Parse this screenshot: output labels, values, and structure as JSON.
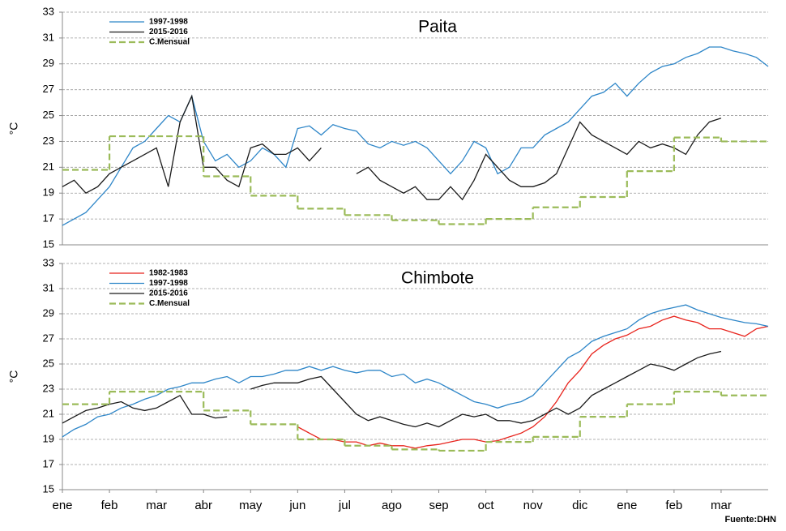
{
  "source": "Fuente:DHN",
  "chart_data": [
    {
      "type": "line",
      "title": "Paita",
      "ylabel": "°C",
      "x": [
        0,
        0.25,
        0.5,
        0.75,
        1,
        1.25,
        1.5,
        1.75,
        2,
        2.25,
        2.5,
        2.75,
        3,
        3.25,
        3.5,
        3.75,
        4,
        4.25,
        4.5,
        4.75,
        5,
        5.25,
        5.5,
        5.75,
        6,
        6.25,
        6.5,
        6.75,
        7,
        7.25,
        7.5,
        7.75,
        8,
        8.25,
        8.5,
        8.75,
        9,
        9.25,
        9.5,
        9.75,
        10,
        10.25,
        10.5,
        10.75,
        11,
        11.25,
        11.5,
        11.75,
        12,
        12.25,
        12.5,
        12.75,
        13,
        13.25,
        13.5,
        13.75,
        14,
        14.25,
        14.5,
        14.75,
        15
      ],
      "xlim": [
        0,
        15
      ],
      "ylim": [
        15,
        33
      ],
      "yticks": [
        15,
        17,
        19,
        21,
        23,
        25,
        27,
        29,
        31,
        33
      ],
      "grid": true,
      "legend": "upper left",
      "series": [
        {
          "name": "1997-1998",
          "color": "#2e86c8",
          "values": [
            16.5,
            17,
            17.5,
            18.5,
            19.5,
            21,
            22.5,
            23,
            24,
            25,
            24.5,
            26.5,
            23,
            21.5,
            22,
            21,
            21.5,
            22.5,
            22,
            21,
            24,
            24.2,
            23.5,
            24.3,
            24,
            23.8,
            22.8,
            22.5,
            23,
            22.7,
            23,
            22.5,
            21.5,
            20.5,
            21.5,
            23,
            22.5,
            20.5,
            21,
            22.5,
            22.5,
            23.5,
            24,
            24.5,
            25.5,
            26.5,
            26.8,
            27.5,
            26.5,
            27.5,
            28.3,
            28.8,
            29,
            29.5,
            29.8,
            30.3,
            30.3,
            30,
            29.8,
            29.5,
            28.8
          ]
        },
        {
          "name": "2015-2016",
          "color": "#1a1a1a",
          "values": [
            19.5,
            20,
            19,
            19.5,
            20.5,
            21,
            21.5,
            22,
            22.5,
            19.5,
            24.5,
            26.5,
            21,
            21,
            20,
            19.5,
            22.5,
            22.8,
            22,
            22,
            22.5,
            21.5,
            22.5,
            null,
            null,
            20.5,
            21,
            20,
            19.5,
            19,
            19.5,
            18.5,
            18.5,
            19.5,
            18.5,
            20,
            22,
            21,
            20,
            19.5,
            19.5,
            19.8,
            20.5,
            22.5,
            24.5,
            23.5,
            23,
            22.5,
            22,
            23,
            22.5,
            22.8,
            22.5,
            22,
            23.5,
            24.5,
            24.8,
            null,
            null,
            null,
            null
          ]
        },
        {
          "name": "C.Mensual",
          "color": "#9bbb59",
          "dash": true,
          "step": true,
          "x": [
            0,
            1,
            2,
            3,
            4,
            5,
            6,
            7,
            8,
            9,
            10,
            11,
            12,
            13,
            14
          ],
          "values": [
            20.8,
            23.4,
            23.4,
            20.3,
            18.8,
            17.8,
            17.3,
            16.9,
            16.6,
            17.0,
            17.9,
            18.7,
            20.7,
            23.3,
            23.0
          ]
        }
      ]
    },
    {
      "type": "line",
      "title": "Chimbote",
      "ylabel": "°C",
      "x": [
        0,
        0.25,
        0.5,
        0.75,
        1,
        1.25,
        1.5,
        1.75,
        2,
        2.25,
        2.5,
        2.75,
        3,
        3.25,
        3.5,
        3.75,
        4,
        4.25,
        4.5,
        4.75,
        5,
        5.25,
        5.5,
        5.75,
        6,
        6.25,
        6.5,
        6.75,
        7,
        7.25,
        7.5,
        7.75,
        8,
        8.25,
        8.5,
        8.75,
        9,
        9.25,
        9.5,
        9.75,
        10,
        10.25,
        10.5,
        10.75,
        11,
        11.25,
        11.5,
        11.75,
        12,
        12.25,
        12.5,
        12.75,
        13,
        13.25,
        13.5,
        13.75,
        14,
        14.25,
        14.5,
        14.75,
        15
      ],
      "xlim": [
        0,
        15
      ],
      "ylim": [
        15,
        33
      ],
      "yticks": [
        15,
        17,
        19,
        21,
        23,
        25,
        27,
        29,
        31,
        33
      ],
      "grid": true,
      "legend": "upper left",
      "xticks": [
        {
          "value": 0,
          "label": "ene"
        },
        {
          "value": 1,
          "label": "feb"
        },
        {
          "value": 2,
          "label": "mar"
        },
        {
          "value": 3,
          "label": "abr"
        },
        {
          "value": 4,
          "label": "may"
        },
        {
          "value": 5,
          "label": "jun"
        },
        {
          "value": 6,
          "label": "jul"
        },
        {
          "value": 7,
          "label": "ago"
        },
        {
          "value": 8,
          "label": "sep"
        },
        {
          "value": 9,
          "label": "oct"
        },
        {
          "value": 10,
          "label": "nov"
        },
        {
          "value": 11,
          "label": "dic"
        },
        {
          "value": 12,
          "label": "ene"
        },
        {
          "value": 13,
          "label": "feb"
        },
        {
          "value": 14,
          "label": "mar"
        }
      ],
      "series": [
        {
          "name": "1982-1983",
          "color": "#e8231c",
          "values": [
            null,
            null,
            null,
            null,
            null,
            null,
            null,
            null,
            null,
            null,
            null,
            null,
            null,
            null,
            null,
            null,
            null,
            null,
            null,
            null,
            20,
            19.5,
            19,
            19,
            18.8,
            18.8,
            18.5,
            18.7,
            18.5,
            18.5,
            18.3,
            18.5,
            18.6,
            18.8,
            19,
            19,
            18.8,
            18.9,
            19.2,
            19.5,
            20,
            20.8,
            22,
            23.5,
            24.5,
            25.8,
            26.5,
            27,
            27.3,
            27.8,
            28,
            28.5,
            28.8,
            28.5,
            28.3,
            27.8,
            27.8,
            27.5,
            27.2,
            27.8,
            28
          ]
        },
        {
          "name": "1997-1998",
          "color": "#2e86c8",
          "values": [
            19.2,
            19.8,
            20.2,
            20.8,
            21,
            21.5,
            21.8,
            22.2,
            22.5,
            23,
            23.2,
            23.5,
            23.5,
            23.8,
            24,
            23.5,
            24,
            24,
            24.2,
            24.5,
            24.5,
            24.8,
            24.5,
            24.8,
            24.5,
            24.3,
            24.5,
            24.5,
            24,
            24.2,
            23.5,
            23.8,
            23.5,
            23,
            22.5,
            22,
            21.8,
            21.5,
            21.8,
            22,
            22.5,
            23.5,
            24.5,
            25.5,
            26,
            26.8,
            27.2,
            27.5,
            27.8,
            28.5,
            29,
            29.3,
            29.5,
            29.7,
            29.3,
            29,
            28.7,
            28.5,
            28.3,
            28.2,
            28
          ]
        },
        {
          "name": "2015-2016",
          "color": "#1a1a1a",
          "values": [
            20.3,
            20.8,
            21.3,
            21.5,
            21.8,
            22,
            21.5,
            21.3,
            21.5,
            22,
            22.5,
            21,
            21,
            20.7,
            20.8,
            null,
            23,
            23.3,
            23.5,
            23.5,
            23.5,
            23.8,
            24,
            23,
            22,
            21,
            20.5,
            20.8,
            20.5,
            20.2,
            20,
            20.3,
            20,
            20.5,
            21,
            20.8,
            21,
            20.5,
            20.5,
            20.3,
            20.5,
            21,
            21.5,
            21,
            21.5,
            22.5,
            23,
            23.5,
            24,
            24.5,
            25,
            24.8,
            24.5,
            25,
            25.5,
            25.8,
            26,
            null,
            null,
            null,
            null
          ]
        },
        {
          "name": "C.Mensual",
          "color": "#9bbb59",
          "dash": true,
          "step": true,
          "x": [
            0,
            1,
            2,
            3,
            4,
            5,
            6,
            7,
            8,
            9,
            10,
            11,
            12,
            13,
            14
          ],
          "values": [
            21.8,
            22.8,
            22.8,
            21.3,
            20.2,
            19.0,
            18.5,
            18.2,
            18.1,
            18.8,
            19.2,
            20.8,
            21.8,
            22.8,
            22.5
          ]
        }
      ]
    }
  ]
}
